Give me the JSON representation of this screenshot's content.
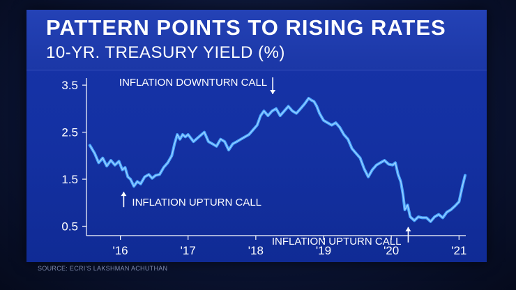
{
  "header": {
    "title": "PATTERN POINTS TO RISING RATES",
    "subtitle": "10-YR. TREASURY YIELD (%)"
  },
  "footer": {
    "source": "SOURCE: ECRI'S LAKSHMAN ACHUTHAN"
  },
  "colors": {
    "line": "#4aa6ff",
    "line_highlight": "#bfe0ff",
    "frame": "#1733a8"
  },
  "chart_data": {
    "type": "line",
    "title": "PATTERN POINTS TO RISING RATES",
    "subtitle": "10-YR. TREASURY YIELD (%)",
    "xlabel": "",
    "ylabel": "",
    "xlim": [
      2015.5,
      2021.1
    ],
    "ylim": [
      0.3,
      3.65
    ],
    "yticks": [
      0.5,
      1.5,
      2.5,
      3.5
    ],
    "ytick_labels": [
      "0.5",
      "1.5",
      "2.5",
      "3.5"
    ],
    "xticks": [
      2016,
      2017,
      2018,
      2019,
      2020,
      2021
    ],
    "xtick_labels": [
      "'16",
      "'17",
      "'18",
      "'19",
      "'20",
      "'21"
    ],
    "grid": false,
    "series": [
      {
        "name": "",
        "x": [
          2015.55,
          2015.62,
          2015.68,
          2015.74,
          2015.8,
          2015.86,
          2015.92,
          2015.98,
          2016.03,
          2016.07,
          2016.11,
          2016.15,
          2016.2,
          2016.25,
          2016.3,
          2016.36,
          2016.42,
          2016.47,
          2016.52,
          2016.58,
          2016.64,
          2016.7,
          2016.76,
          2016.8,
          2016.84,
          2016.88,
          2016.92,
          2016.96,
          2017.0,
          2017.08,
          2017.16,
          2017.24,
          2017.3,
          2017.36,
          2017.42,
          2017.48,
          2017.54,
          2017.6,
          2017.66,
          2017.72,
          2017.78,
          2017.84,
          2017.9,
          2017.96,
          2018.02,
          2018.07,
          2018.12,
          2018.18,
          2018.24,
          2018.3,
          2018.36,
          2018.42,
          2018.48,
          2018.54,
          2018.6,
          2018.66,
          2018.72,
          2018.78,
          2018.82,
          2018.86,
          2018.9,
          2018.94,
          2019.0,
          2019.06,
          2019.12,
          2019.18,
          2019.24,
          2019.3,
          2019.36,
          2019.42,
          2019.48,
          2019.54,
          2019.6,
          2019.66,
          2019.72,
          2019.78,
          2019.84,
          2019.9,
          2019.96,
          2020.02,
          2020.06,
          2020.1,
          2020.14,
          2020.17,
          2020.2,
          2020.24,
          2020.28,
          2020.34,
          2020.4,
          2020.46,
          2020.52,
          2020.58,
          2020.64,
          2020.7,
          2020.76,
          2020.82,
          2020.88,
          2020.94,
          2021.0,
          2021.05,
          2021.09
        ],
        "values": [
          2.22,
          2.05,
          1.85,
          1.95,
          1.78,
          1.9,
          1.8,
          1.88,
          1.7,
          1.75,
          1.55,
          1.5,
          1.35,
          1.45,
          1.4,
          1.55,
          1.6,
          1.52,
          1.58,
          1.6,
          1.75,
          1.85,
          2.0,
          2.25,
          2.45,
          2.35,
          2.45,
          2.4,
          2.45,
          2.3,
          2.4,
          2.5,
          2.3,
          2.25,
          2.2,
          2.35,
          2.3,
          2.12,
          2.25,
          2.3,
          2.35,
          2.4,
          2.45,
          2.55,
          2.65,
          2.85,
          2.95,
          2.85,
          2.95,
          3.0,
          2.85,
          2.95,
          3.05,
          2.95,
          2.9,
          3.0,
          3.1,
          3.22,
          3.18,
          3.15,
          3.05,
          2.9,
          2.75,
          2.7,
          2.65,
          2.7,
          2.6,
          2.45,
          2.35,
          2.15,
          2.05,
          1.95,
          1.72,
          1.55,
          1.7,
          1.8,
          1.85,
          1.9,
          1.82,
          1.8,
          1.85,
          1.6,
          1.45,
          1.2,
          0.85,
          0.95,
          0.7,
          0.62,
          0.7,
          0.68,
          0.68,
          0.6,
          0.7,
          0.75,
          0.68,
          0.8,
          0.85,
          0.93,
          1.02,
          1.35,
          1.58
        ]
      }
    ],
    "annotations": [
      {
        "text": "INFLATION DOWNTURN CALL",
        "x": 2018.25,
        "y": 3.22,
        "position": "above"
      },
      {
        "text": "INFLATION UPTURN CALL",
        "x": 2016.05,
        "y": 1.35,
        "position": "below"
      },
      {
        "text": "INFLATION UPTURN CALL",
        "x": 2020.25,
        "y": 0.6,
        "position": "below"
      }
    ]
  }
}
